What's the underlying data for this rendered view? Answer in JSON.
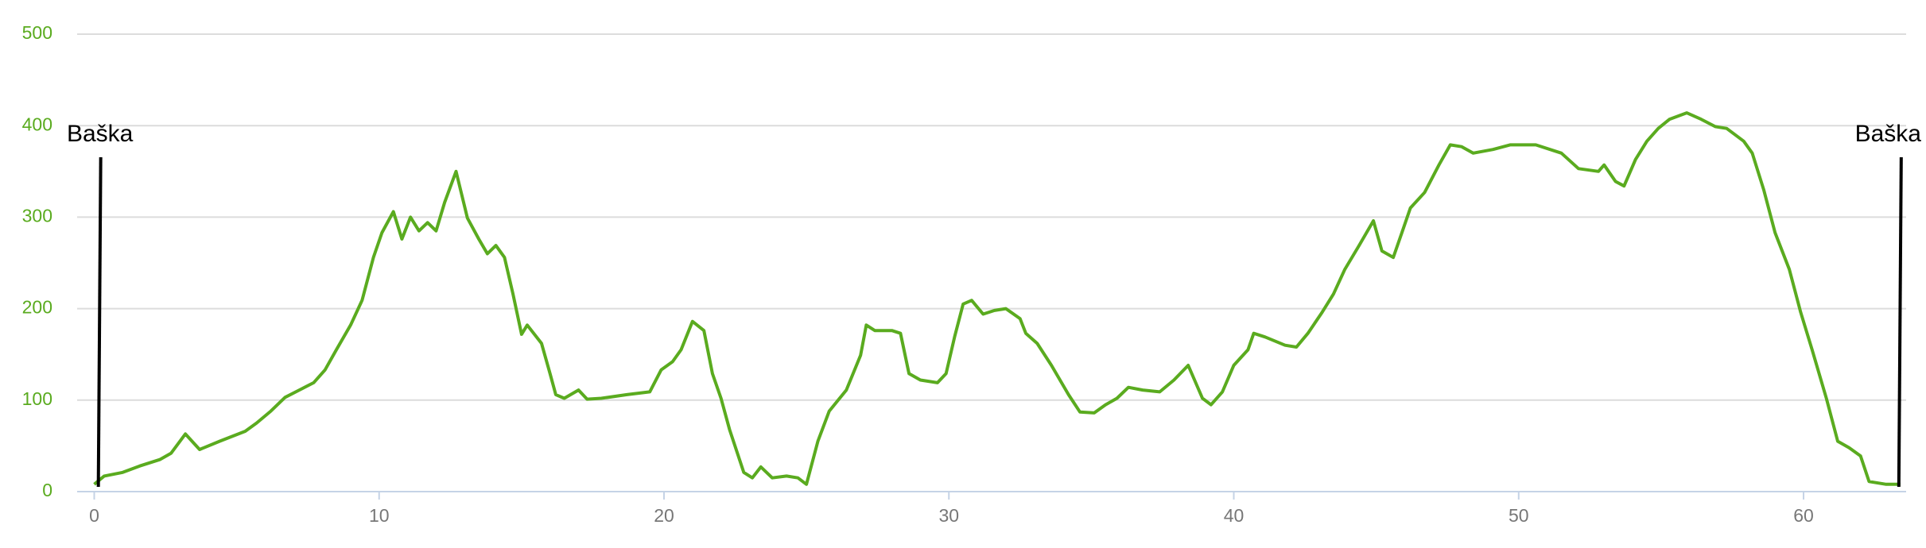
{
  "chart_data": {
    "type": "line",
    "x": [
      0,
      0.35,
      1.0,
      1.6,
      2.3,
      2.7,
      3.2,
      3.7,
      4.4,
      5.3,
      5.7,
      6.2,
      6.7,
      7.2,
      7.7,
      8.1,
      8.5,
      9.0,
      9.4,
      9.8,
      10.1,
      10.5,
      10.8,
      11.1,
      11.4,
      11.7,
      12.0,
      12.3,
      12.7,
      13.1,
      13.5,
      13.8,
      14.1,
      14.4,
      14.7,
      15.0,
      15.2,
      15.7,
      16.0,
      16.2,
      16.5,
      17.0,
      17.3,
      17.8,
      18.7,
      19.5,
      19.9,
      20.3,
      20.6,
      21.0,
      21.4,
      21.7,
      22.0,
      22.3,
      22.8,
      23.1,
      23.4,
      23.8,
      24.3,
      24.7,
      25.0,
      25.4,
      25.8,
      26.4,
      26.9,
      27.1,
      27.4,
      28.0,
      28.3,
      28.6,
      29.0,
      29.6,
      29.9,
      30.2,
      30.5,
      30.8,
      31.2,
      31.6,
      32.0,
      32.5,
      32.7,
      33.1,
      33.6,
      34.2,
      34.6,
      35.1,
      35.5,
      35.9,
      36.3,
      36.8,
      37.4,
      37.9,
      38.4,
      38.9,
      39.2,
      39.6,
      40.0,
      40.5,
      40.7,
      41.1,
      41.8,
      42.2,
      42.6,
      43.1,
      43.5,
      43.9,
      44.4,
      44.9,
      45.2,
      45.6,
      45.9,
      46.2,
      46.7,
      47.2,
      47.6,
      48.0,
      48.4,
      49.1,
      49.7,
      50.6,
      51.5,
      52.1,
      52.8,
      53.0,
      53.4,
      53.7,
      54.1,
      54.5,
      54.9,
      55.3,
      55.9,
      56.4,
      56.9,
      57.3,
      57.6,
      57.9,
      58.2,
      58.6,
      59.0,
      59.5,
      59.9,
      60.3,
      60.8,
      61.2,
      61.6,
      62.0,
      62.3,
      62.9,
      63.4
    ],
    "values": [
      8,
      17,
      21,
      28,
      35,
      42,
      63,
      46,
      55,
      66,
      75,
      88,
      103,
      111,
      119,
      133,
      155,
      182,
      209,
      256,
      283,
      306,
      276,
      300,
      285,
      294,
      285,
      316,
      350,
      299,
      276,
      260,
      269,
      256,
      216,
      172,
      182,
      162,
      129,
      106,
      102,
      111,
      101,
      102,
      106,
      109,
      133,
      142,
      155,
      186,
      176,
      129,
      102,
      68,
      21,
      15,
      27,
      15,
      17,
      15,
      8,
      55,
      88,
      111,
      149,
      182,
      176,
      176,
      173,
      129,
      122,
      119,
      129,
      169,
      205,
      209,
      194,
      198,
      200,
      189,
      173,
      162,
      138,
      106,
      87,
      86,
      95,
      102,
      114,
      111,
      109,
      122,
      138,
      102,
      95,
      109,
      138,
      155,
      173,
      169,
      160,
      158,
      173,
      196,
      216,
      243,
      269,
      296,
      263,
      256,
      283,
      310,
      327,
      357,
      379,
      377,
      370,
      374,
      379,
      379,
      370,
      353,
      350,
      357,
      339,
      334,
      363,
      383,
      397,
      407,
      414,
      407,
      399,
      397,
      390,
      383,
      370,
      330,
      283,
      243,
      196,
      155,
      102,
      55,
      48,
      39,
      11,
      8,
      8
    ],
    "color": "#5aab1f",
    "xlim": [
      -0.6,
      63.6
    ],
    "xticks": [
      0,
      10,
      20,
      30,
      40,
      50,
      60
    ],
    "ylim": [
      0,
      500
    ],
    "yticks": [
      0,
      100,
      200,
      300,
      400,
      500
    ],
    "grid": true,
    "annotations": [
      {
        "x": 0.2,
        "label": "Baška"
      },
      {
        "x": 63.4,
        "label": "Baška"
      }
    ]
  }
}
